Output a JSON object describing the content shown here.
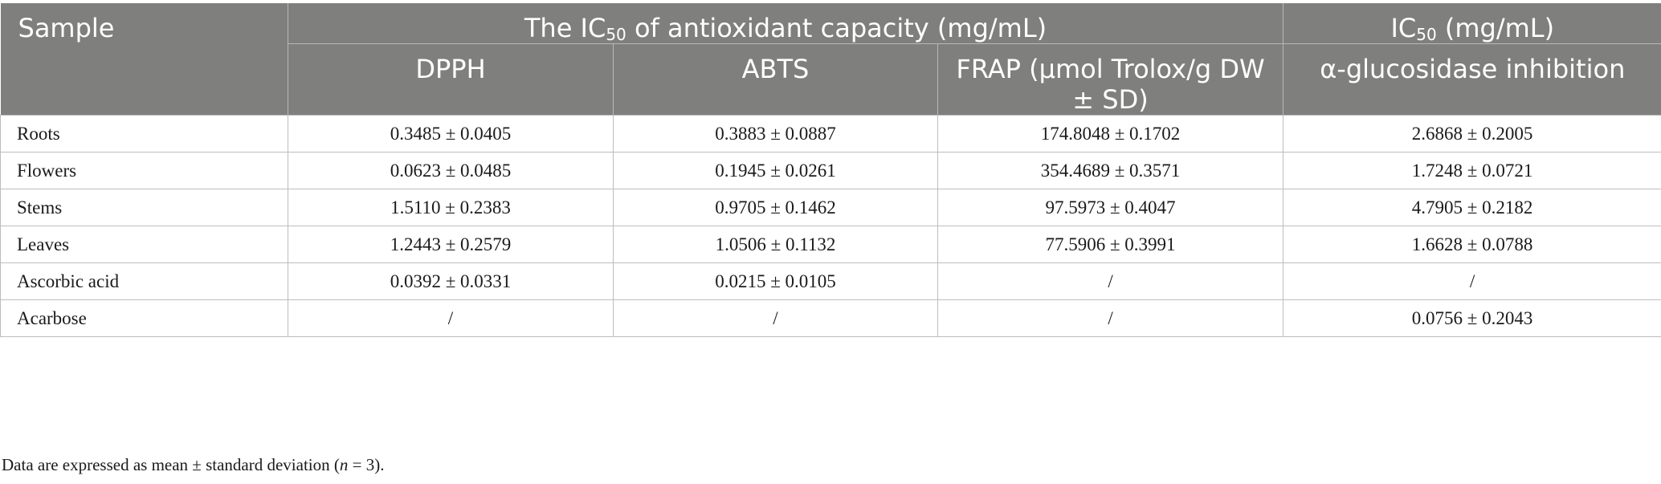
{
  "table": {
    "header": {
      "sample_label": "Sample",
      "group1_prefix": "The IC",
      "group1_sub": "50",
      "group1_suffix": " of antioxidant capacity (mg/mL)",
      "group2_prefix": "IC",
      "group2_sub": "50",
      "group2_suffix": " (mg/mL)",
      "columns": [
        "DPPH",
        "ABTS",
        "FRAP (µmol Trolox/g DW ± SD)",
        "α-glucosidase inhibition"
      ]
    },
    "rows": [
      {
        "sample": "Roots",
        "dpph": "0.3485 ± 0.0405",
        "abts": "0.3883 ± 0.0887",
        "frap": "174.8048 ± 0.1702",
        "glucosidase": "2.6868 ± 0.2005"
      },
      {
        "sample": "Flowers",
        "dpph": "0.0623 ± 0.0485",
        "abts": "0.1945 ± 0.0261",
        "frap": "354.4689 ± 0.3571",
        "glucosidase": "1.7248 ± 0.0721"
      },
      {
        "sample": "Stems",
        "dpph": "1.5110 ± 0.2383",
        "abts": "0.9705 ± 0.1462",
        "frap": "97.5973 ± 0.4047",
        "glucosidase": "4.7905 ± 0.2182"
      },
      {
        "sample": "Leaves",
        "dpph": "1.2443 ± 0.2579",
        "abts": "1.0506 ± 0.1132",
        "frap": "77.5906 ± 0.3991",
        "glucosidase": "1.6628 ± 0.0788"
      },
      {
        "sample": "Ascorbic acid",
        "dpph": "0.0392 ± 0.0331",
        "abts": "0.0215 ± 0.0105",
        "frap": "/",
        "glucosidase": "/"
      },
      {
        "sample": "Acarbose",
        "dpph": "/",
        "abts": "/",
        "frap": "/",
        "glucosidase": "0.0756 ± 0.2043"
      }
    ]
  },
  "footnote": {
    "text_before": "Data are expressed as mean ± standard deviation (",
    "n_symbol": "n",
    "text_after": " = 3)."
  }
}
